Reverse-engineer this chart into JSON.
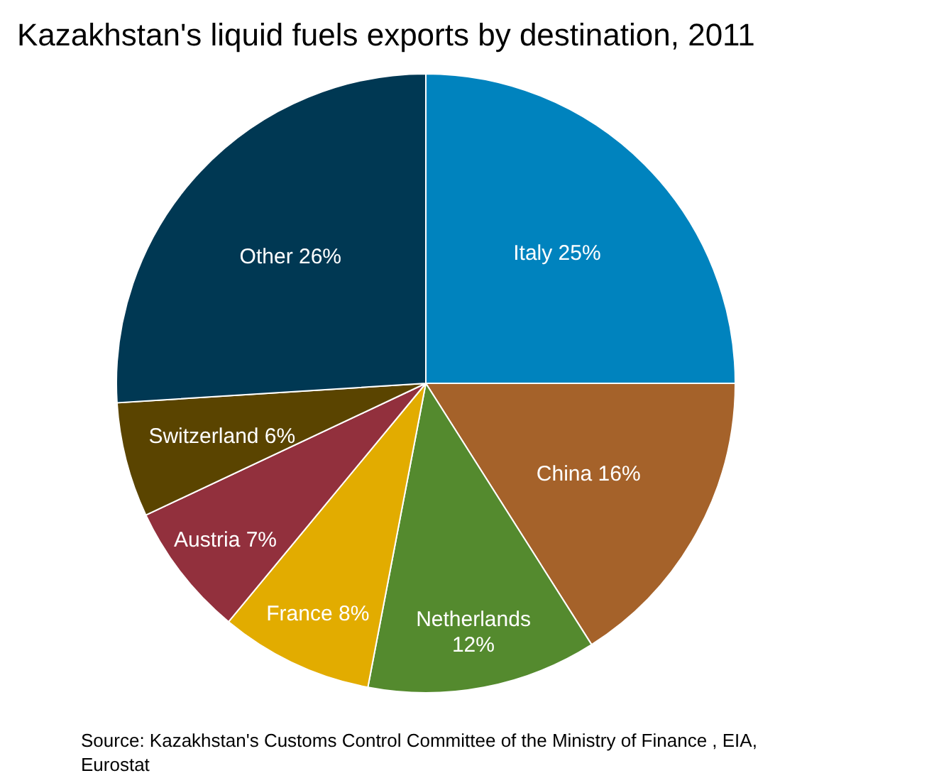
{
  "chart_data": {
    "type": "pie",
    "title": "Kazakhstan's liquid fuels exports by destination, 2011",
    "categories": [
      "Italy",
      "China",
      "Netherlands",
      "France",
      "Austria",
      "Switzerland",
      "Other"
    ],
    "values": [
      25,
      16,
      12,
      8,
      7,
      6,
      26
    ],
    "value_labels": [
      "25%",
      "16%",
      "12%",
      "8%",
      "7%",
      "6%",
      "26%"
    ],
    "colors": [
      "#0083be",
      "#a5622a",
      "#548a2e",
      "#e2ac00",
      "#92303d",
      "#5a4400",
      "#003853"
    ],
    "annotations": [
      "Source:  Kazakhstan's Customs Control Committee of the Ministry of Finance , EIA, Eurostat"
    ]
  }
}
